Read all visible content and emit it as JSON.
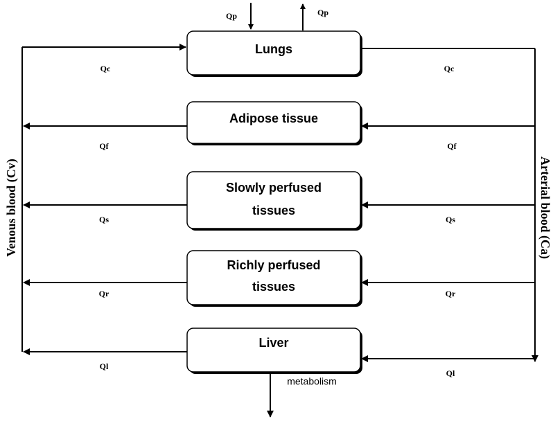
{
  "flow_in_label": "Qp",
  "flow_out_label": "Qp",
  "venous_label": "Venous blood (Cv)",
  "arterial_label": "Arterial blood (Ca)",
  "metabolism_label": "metabolism",
  "nodes": [
    {
      "lines": [
        "Lungs"
      ],
      "left_flow": "Qc",
      "right_flow": "Qc"
    },
    {
      "lines": [
        "Adipose tissue"
      ],
      "left_flow": "Qf",
      "right_flow": "Qf"
    },
    {
      "lines": [
        "Slowly perfused",
        "tissues"
      ],
      "left_flow": "Qs",
      "right_flow": "Qs"
    },
    {
      "lines": [
        "Richly perfused",
        "tissues"
      ],
      "left_flow": "Qr",
      "right_flow": "Qr"
    },
    {
      "lines": [
        "Liver"
      ],
      "left_flow": "Ql",
      "right_flow": "Ql"
    }
  ]
}
